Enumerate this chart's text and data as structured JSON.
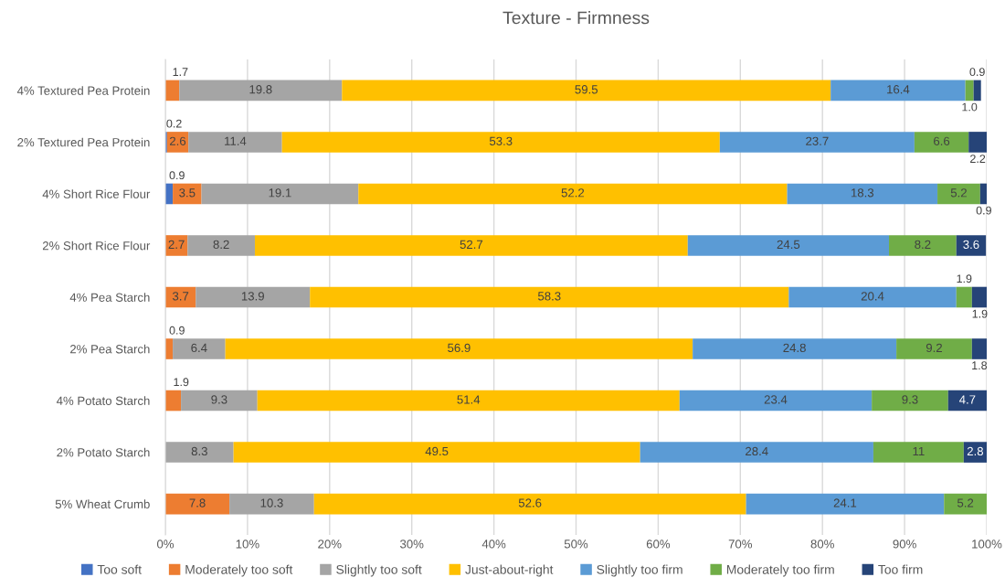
{
  "chart_data": {
    "type": "bar",
    "orientation": "horizontal",
    "stacked": true,
    "title": "Texture - Firmness",
    "categories": [
      "4% Textured Pea Protein",
      "2% Textured Pea Protein",
      "4% Short Rice Flour",
      "2% Short Rice Flour",
      "4% Pea Starch",
      "2% Pea Starch",
      "4% Potato Starch",
      "2% Potato Starch",
      "5% Wheat Crumb"
    ],
    "series": [
      {
        "name": "Too soft",
        "color": "#4472c4",
        "values": [
          null,
          0.2,
          0.9,
          null,
          null,
          null,
          null,
          null,
          null
        ],
        "value_labels": [
          null,
          "0.2",
          "0.9",
          null,
          null,
          null,
          null,
          null,
          null
        ]
      },
      {
        "name": "Moderately too soft",
        "color": "#ed7d31",
        "values": [
          1.7,
          2.6,
          3.5,
          2.7,
          3.7,
          0.9,
          1.9,
          null,
          7.8
        ],
        "value_labels": [
          "1.7",
          "2.6",
          "3.5",
          "2.7",
          "3.7",
          "0.9",
          "1.9",
          null,
          "7.8"
        ]
      },
      {
        "name": "Slightly too soft",
        "color": "#a5a5a5",
        "values": [
          19.8,
          11.4,
          19.1,
          8.2,
          13.9,
          6.4,
          9.3,
          8.3,
          10.3
        ],
        "value_labels": [
          "19.8",
          "11.4",
          "19.1",
          "8.2",
          "13.9",
          "6.4",
          "9.3",
          "8.3",
          "10.3"
        ]
      },
      {
        "name": "Just-about-right",
        "color": "#ffc000",
        "values": [
          59.5,
          53.3,
          52.2,
          52.7,
          58.3,
          56.9,
          51.4,
          49.5,
          52.6
        ],
        "value_labels": [
          "59.5",
          "53.3",
          "52.2",
          "52.7",
          "58.3",
          "56.9",
          "51.4",
          "49.5",
          "52.6"
        ]
      },
      {
        "name": "Slightly too firm",
        "color": "#5b9bd5",
        "values": [
          16.4,
          23.7,
          18.3,
          24.5,
          20.4,
          24.8,
          23.4,
          28.4,
          24.1
        ],
        "value_labels": [
          "16.4",
          "23.7",
          "18.3",
          "24.5",
          "20.4",
          "24.8",
          "23.4",
          "28.4",
          "24.1"
        ]
      },
      {
        "name": "Moderately too firm",
        "color": "#70ad47",
        "values": [
          1.0,
          6.6,
          5.2,
          8.2,
          1.9,
          9.2,
          9.3,
          11,
          5.2
        ],
        "value_labels": [
          "1.0",
          "6.6",
          "5.2",
          "8.2",
          "1.9",
          "9.2",
          "9.3",
          "11",
          "5.2"
        ]
      },
      {
        "name": "Too firm",
        "color": "#264478",
        "values": [
          0.9,
          2.2,
          0.9,
          3.6,
          1.9,
          1.8,
          4.7,
          2.8,
          null
        ],
        "value_labels": [
          "0.9",
          "2.2",
          "0.9",
          "3.6",
          "1.9",
          "1.8",
          "4.7",
          "2.8",
          null
        ]
      }
    ],
    "xlim": [
      0,
      100
    ],
    "xticks": [
      {
        "value": 0,
        "label": "0%"
      },
      {
        "value": 10,
        "label": "10%"
      },
      {
        "value": 20,
        "label": "20%"
      },
      {
        "value": 30,
        "label": "30%"
      },
      {
        "value": 40,
        "label": "40%"
      },
      {
        "value": 50,
        "label": "50%"
      },
      {
        "value": 60,
        "label": "60%"
      },
      {
        "value": 70,
        "label": "70%"
      },
      {
        "value": 80,
        "label": "80%"
      },
      {
        "value": 90,
        "label": "90%"
      },
      {
        "value": 100,
        "label": "100%"
      }
    ],
    "grid": "x",
    "legend": "bottom"
  }
}
